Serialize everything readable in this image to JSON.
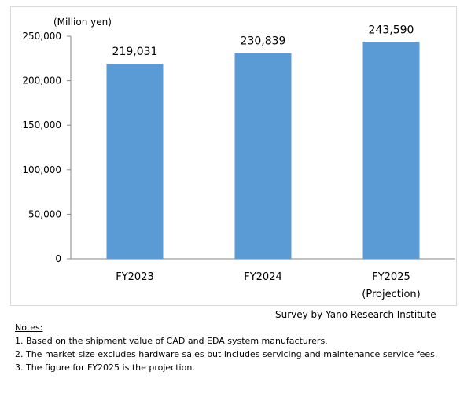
{
  "chart_data": {
    "type": "bar",
    "unit_label": "(Million yen)",
    "categories": [
      "FY2023",
      "FY2024",
      "FY2025"
    ],
    "category_sublabels": [
      "",
      "",
      "(Projection)"
    ],
    "values": [
      219031,
      230839,
      243590
    ],
    "value_labels": [
      "219,031",
      "230,839",
      "243,590"
    ],
    "yticks": [
      0,
      50000,
      100000,
      150000,
      200000,
      250000
    ],
    "ytick_labels": [
      "0",
      "50,000",
      "100,000",
      "150,000",
      "200,000",
      "250,000"
    ],
    "ylim": [
      0,
      250000
    ],
    "grid": false,
    "legend": "none",
    "bar_color": "#5b9bd5"
  },
  "source": "Survey by Yano Research Institute",
  "notes": {
    "heading": "Notes:",
    "items": [
      "1.  Based on the shipment value of CAD and EDA system manufacturers.",
      "2. The market size excludes hardware sales but includes servicing and maintenance service fees.",
      "3.  The figure for FY2025 is the projection."
    ]
  }
}
